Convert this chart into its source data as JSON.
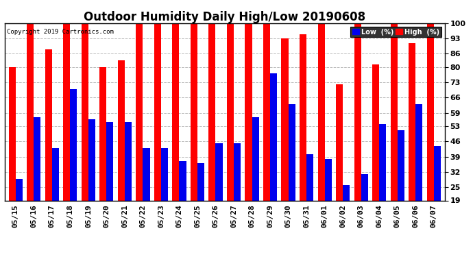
{
  "title": "Outdoor Humidity Daily High/Low 20190608",
  "copyright": "Copyright 2019 Cartronics.com",
  "labels": [
    "05/15",
    "05/16",
    "05/17",
    "05/18",
    "05/19",
    "05/20",
    "05/21",
    "05/22",
    "05/23",
    "05/24",
    "05/25",
    "05/26",
    "05/27",
    "05/28",
    "05/29",
    "05/30",
    "05/31",
    "06/01",
    "06/02",
    "06/03",
    "06/04",
    "06/05",
    "06/06",
    "06/07"
  ],
  "high": [
    80,
    100,
    88,
    100,
    100,
    80,
    83,
    100,
    100,
    100,
    100,
    100,
    100,
    100,
    100,
    93,
    95,
    100,
    72,
    100,
    81,
    100,
    91,
    100
  ],
  "low": [
    29,
    57,
    43,
    70,
    56,
    55,
    55,
    43,
    43,
    37,
    36,
    45,
    45,
    57,
    77,
    63,
    40,
    38,
    26,
    31,
    54,
    51,
    63,
    44
  ],
  "high_color": "#FF0000",
  "low_color": "#0000EE",
  "bg_color": "#FFFFFF",
  "yticks": [
    19,
    25,
    32,
    39,
    46,
    53,
    59,
    66,
    73,
    80,
    86,
    93,
    100
  ],
  "ymin": 19,
  "ymax": 100,
  "grid_color": "#BBBBBB",
  "title_fontsize": 12,
  "tick_fontsize": 8,
  "legend_low_label": "Low  (%)",
  "legend_high_label": "High  (%)"
}
